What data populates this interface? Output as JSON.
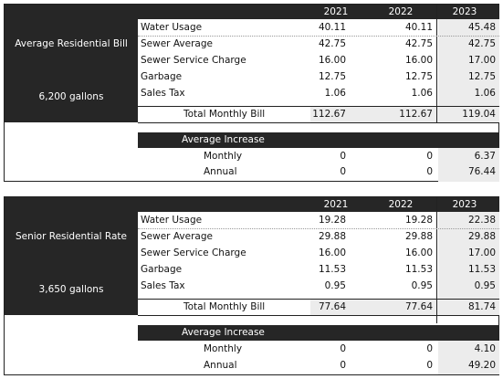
{
  "years": [
    "2021",
    "2022",
    "2023"
  ],
  "tables": [
    {
      "title": "Average Residential Bill",
      "volume": "6,200 gallons",
      "rows": [
        {
          "label": "Water Usage",
          "values": [
            "40.11",
            "40.11",
            "45.48"
          ]
        },
        {
          "label": "Sewer Average",
          "values": [
            "42.75",
            "42.75",
            "42.75"
          ]
        },
        {
          "label": "Sewer Service Charge",
          "values": [
            "16.00",
            "16.00",
            "17.00"
          ]
        },
        {
          "label": "Garbage",
          "values": [
            "12.75",
            "12.75",
            "12.75"
          ]
        },
        {
          "label": "Sales Tax",
          "values": [
            "1.06",
            "1.06",
            "1.06"
          ]
        }
      ],
      "total": {
        "label": "Total Monthly Bill",
        "values": [
          "112.67",
          "112.67",
          "119.04"
        ]
      },
      "increase": {
        "label": "Average Increase",
        "rows": [
          {
            "label": "Monthly",
            "values": [
              "0",
              "0",
              "6.37"
            ]
          },
          {
            "label": "Annual",
            "values": [
              "0",
              "0",
              "76.44"
            ]
          }
        ]
      }
    },
    {
      "title": "Senior Residential Rate",
      "volume": "3,650 gallons",
      "rows": [
        {
          "label": "Water Usage",
          "values": [
            "19.28",
            "19.28",
            "22.38"
          ]
        },
        {
          "label": "Sewer Average",
          "values": [
            "29.88",
            "29.88",
            "29.88"
          ]
        },
        {
          "label": "Sewer Service Charge",
          "values": [
            "16.00",
            "16.00",
            "17.00"
          ]
        },
        {
          "label": "Garbage",
          "values": [
            "11.53",
            "11.53",
            "11.53"
          ]
        },
        {
          "label": "Sales Tax",
          "values": [
            "0.95",
            "0.95",
            "0.95"
          ]
        }
      ],
      "total": {
        "label": "Total Monthly Bill",
        "values": [
          "77.64",
          "77.64",
          "81.74"
        ]
      },
      "increase": {
        "label": "Average Increase",
        "rows": [
          {
            "label": "Monthly",
            "values": [
              "0",
              "0",
              "4.10"
            ]
          },
          {
            "label": "Annual",
            "values": [
              "0",
              "0",
              "49.20"
            ]
          }
        ]
      }
    }
  ]
}
